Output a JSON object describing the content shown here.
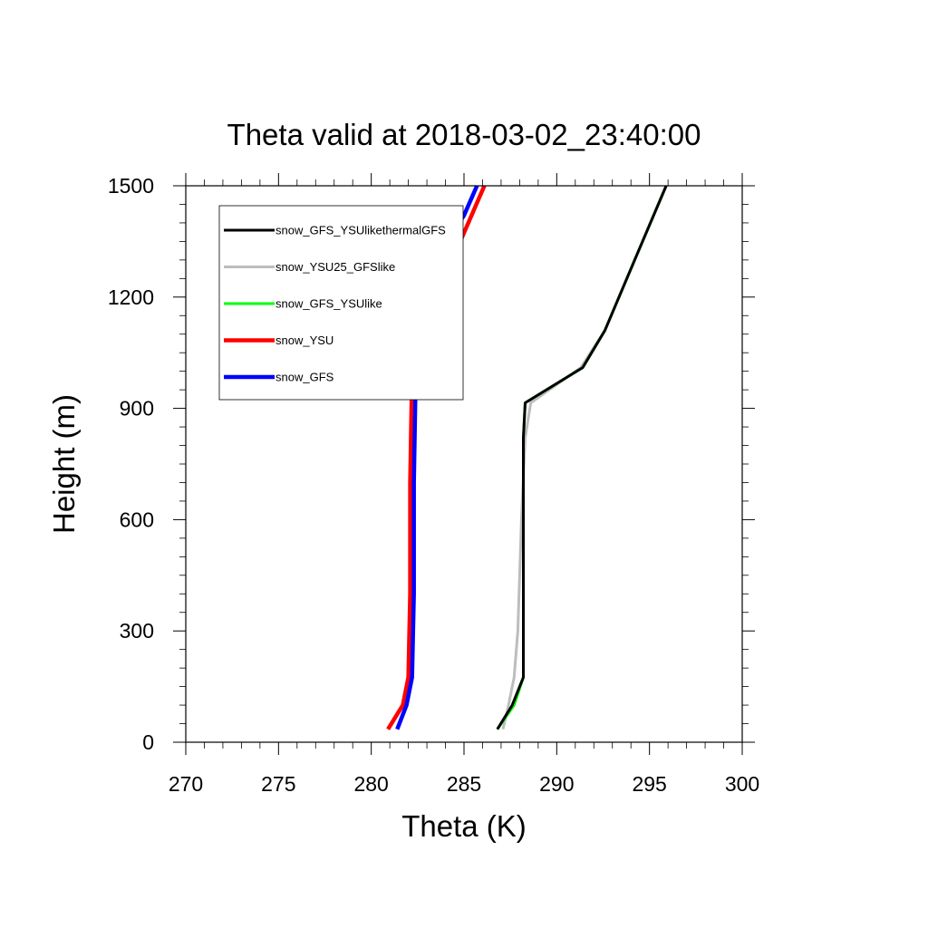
{
  "chart_data": {
    "type": "line",
    "title": "Theta valid at 2018-03-02_23:40:00",
    "xlabel": "Theta (K)",
    "ylabel": "Height (m)",
    "xlim": [
      270,
      300
    ],
    "ylim": [
      0,
      1500
    ],
    "xticks": [
      "270",
      "275",
      "280",
      "285",
      "290",
      "295",
      "300"
    ],
    "yticks": [
      "0",
      "300",
      "600",
      "900",
      "1200",
      "1500"
    ],
    "legend_position": "top-left",
    "grid": false,
    "series": [
      {
        "name": "snow_GFS_YSUlikethermalGFS",
        "color": "#000000",
        "x": [
          286.8,
          287.6,
          288.2,
          288.2,
          288.2,
          288.3,
          291.4,
          292.6,
          294.2,
          295.9
        ],
        "y": [
          35,
          100,
          175,
          400,
          820,
          915,
          1010,
          1110,
          1300,
          1500
        ]
      },
      {
        "name": "snow_YSU25_GFSlike",
        "color": "#bdbdbd",
        "x": [
          287.1,
          287.4,
          287.7,
          287.9,
          288.1,
          288.3,
          288.6,
          291.3,
          292.6,
          295.9
        ],
        "y": [
          35,
          100,
          175,
          300,
          600,
          820,
          915,
          1010,
          1110,
          1500
        ]
      },
      {
        "name": "snow_GFS_YSUlike",
        "color": "#00ff00",
        "x": [
          286.8,
          287.7,
          288.2,
          288.2,
          288.2,
          288.3,
          291.4,
          292.6,
          294.2,
          295.9
        ],
        "y": [
          35,
          100,
          175,
          400,
          820,
          915,
          1010,
          1110,
          1300,
          1500
        ]
      },
      {
        "name": "snow_YSU",
        "color": "#ff0000",
        "x": [
          280.9,
          281.7,
          282.0,
          282.1,
          282.1,
          282.2,
          282.5,
          283.5,
          286.1
        ],
        "y": [
          35,
          100,
          175,
          400,
          700,
          1000,
          1100,
          1200,
          1500
        ]
      },
      {
        "name": "snow_GFS",
        "color": "#0000ff",
        "x": [
          281.4,
          281.9,
          282.2,
          282.3,
          282.3,
          282.4,
          282.6,
          283.4,
          285.0,
          285.7
        ],
        "y": [
          35,
          100,
          175,
          400,
          700,
          1000,
          1200,
          1300,
          1420,
          1500
        ]
      }
    ]
  }
}
